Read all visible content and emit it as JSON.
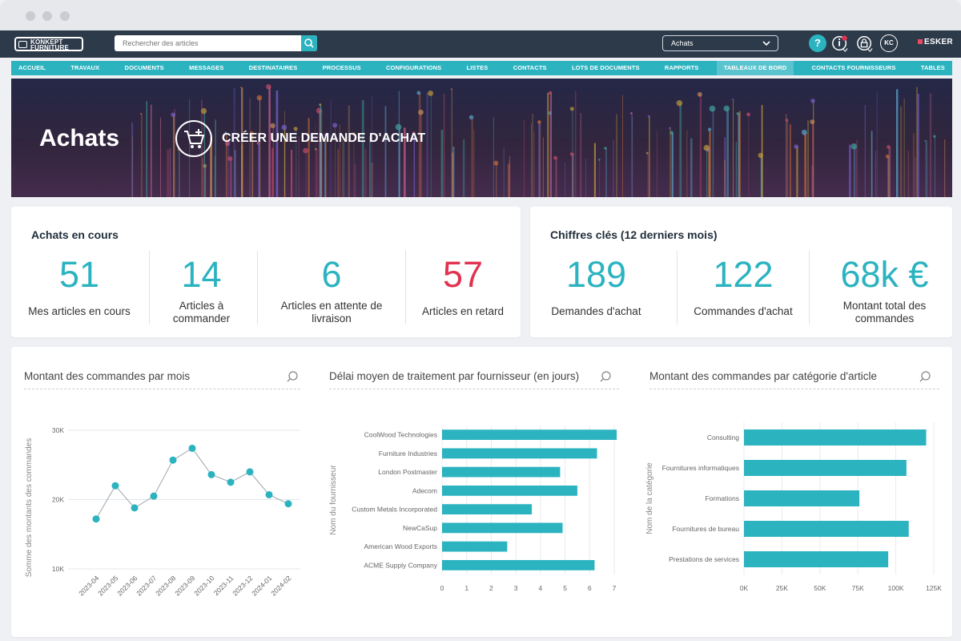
{
  "brand": {
    "logo_line1": "KONKEPT",
    "logo_line2": "FURNITURE",
    "partner": "ESKER"
  },
  "search": {
    "placeholder": "Rechercher des articles"
  },
  "context_select": {
    "value": "Achats"
  },
  "user_badge": "KC",
  "help_label": "?",
  "nav": {
    "items": [
      "ACCUEIL",
      "TRAVAUX",
      "DOCUMENTS",
      "MESSAGES",
      "DESTINATAIRES",
      "PROCESSUS",
      "CONFIGURATIONS",
      "LISTES",
      "CONTACTS",
      "LOTS DE DOCUMENTS",
      "RAPPORTS",
      "TABLEAUX DE BORD",
      "CONTACTS FOURNISSEURS",
      "TABLES"
    ],
    "active": "TABLEAUX DE BORD"
  },
  "hero": {
    "title": "Achats",
    "create_label": "CRÉER UNE DEMANDE D'ACHAT"
  },
  "current": {
    "title": "Achats en cours",
    "kpis": [
      {
        "value": "51",
        "label": "Mes articles en cours",
        "color": "#2bb3c0"
      },
      {
        "value": "14",
        "label": "Articles à commander",
        "color": "#2bb3c0"
      },
      {
        "value": "6",
        "label": "Articles en attente de livraison",
        "color": "#2bb3c0"
      },
      {
        "value": "57",
        "label": "Articles en retard",
        "color": "#e13350"
      }
    ]
  },
  "key": {
    "title": "Chiffres clés (12 derniers mois)",
    "kpis": [
      {
        "value": "189",
        "label": "Demandes d'achat"
      },
      {
        "value": "122",
        "label": "Commandes d'achat"
      },
      {
        "value": "68k €",
        "label": "Montant total des commandes"
      }
    ]
  },
  "colors": {
    "accent": "#2bb3c0",
    "danger": "#e13350",
    "topbar": "#2d3a4a"
  },
  "chart_data": [
    {
      "type": "line",
      "title": "Montant des commandes par mois",
      "ylabel": "Somme des montants des commandes",
      "xlabel": "",
      "categories": [
        "2023-04",
        "2023-05",
        "2023-06",
        "2023-07",
        "2023-08",
        "2023-09",
        "2023-10",
        "2023-11",
        "2023-12",
        "2024-01",
        "2024-02"
      ],
      "values": [
        17200,
        22000,
        18800,
        20500,
        25700,
        27400,
        23600,
        22500,
        24000,
        20700,
        19400
      ],
      "ylim": [
        10000,
        30000
      ],
      "yticks": [
        10000,
        20000,
        30000
      ],
      "ytick_labels": [
        "10K",
        "20K",
        "30K"
      ],
      "grid": true
    },
    {
      "type": "bar",
      "orientation": "horizontal",
      "title": "Délai moyen de traitement par fournisseur (en jours)",
      "ylabel": "Nom du fournisseur",
      "xlabel": "",
      "categories": [
        "CoolWood Technologies",
        "Furniture Industries",
        "London Postmaster",
        "Adecom",
        "Custom Metals Incorporated",
        "NewCaSup",
        "American Wood Exports",
        "ACME Supply Company"
      ],
      "values": [
        7.1,
        6.3,
        4.8,
        5.5,
        3.65,
        4.9,
        2.65,
        6.2
      ],
      "xlim": [
        0,
        7
      ],
      "xticks": [
        0,
        1,
        2,
        3,
        4,
        5,
        6,
        7
      ],
      "xtick_labels": [
        "0",
        "1",
        "2",
        "3",
        "4",
        "5",
        "6",
        "7"
      ],
      "grid": true
    },
    {
      "type": "bar",
      "orientation": "horizontal",
      "title": "Montant des commandes par catégorie d'article",
      "ylabel": "Nom de la catégorie",
      "xlabel": "",
      "categories": [
        "Consulting",
        "Fournitures informatiques",
        "Formations",
        "Fournitures de bureau",
        "Prestations de services"
      ],
      "values": [
        120000,
        107000,
        76000,
        108500,
        95000
      ],
      "xlim": [
        0,
        125000
      ],
      "xticks": [
        0,
        25000,
        50000,
        75000,
        100000,
        125000
      ],
      "xtick_labels": [
        "0K",
        "25K",
        "50K",
        "75K",
        "100K",
        "125K"
      ],
      "grid": true
    }
  ]
}
